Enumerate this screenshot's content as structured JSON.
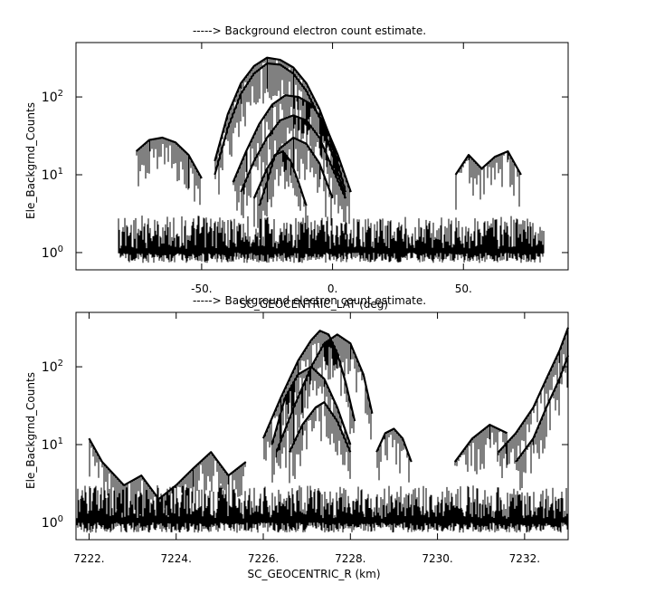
{
  "chart_data": [
    {
      "type": "line",
      "title": "-----> Background electron count estimate.",
      "xlabel": "SC_GEOCENTRIC_LAT (deg)",
      "ylabel": "Ele_Backgrnd_Counts",
      "xlim": [
        -98,
        90
      ],
      "ylim": [
        0.6,
        500
      ],
      "yscale": "log",
      "xticks": [
        {
          "value": -50,
          "label": "-50."
        },
        {
          "value": 0,
          "label": "0."
        },
        {
          "value": 50,
          "label": "50."
        }
      ],
      "yticks": [
        {
          "value": 1,
          "base": "10",
          "exp": "0"
        },
        {
          "value": 10,
          "base": "10",
          "exp": "1"
        },
        {
          "value": 100,
          "base": "10",
          "exp": "2"
        }
      ],
      "grid": false,
      "series": [
        {
          "x": [
            -75,
            -70,
            -65,
            -60,
            -55,
            -50
          ],
          "y": [
            20,
            28,
            30,
            26,
            18,
            9
          ]
        },
        {
          "x": [
            -45,
            -40,
            -35,
            -30,
            -25,
            -20,
            -15,
            -10,
            -5,
            0,
            5
          ],
          "y": [
            15,
            60,
            150,
            250,
            320,
            300,
            240,
            150,
            70,
            25,
            6
          ]
        },
        {
          "x": [
            -45,
            -40,
            -35,
            -30,
            -25,
            -20,
            -15,
            -10,
            -5,
            0,
            5
          ],
          "y": [
            10,
            40,
            110,
            200,
            270,
            260,
            200,
            120,
            55,
            18,
            5
          ]
        },
        {
          "x": [
            -38,
            -33,
            -28,
            -23,
            -18,
            -13,
            -8,
            -3,
            2,
            7
          ],
          "y": [
            8,
            20,
            45,
            80,
            105,
            100,
            80,
            45,
            18,
            6
          ]
        },
        {
          "x": [
            -35,
            -30,
            -25,
            -20,
            -15,
            -10,
            -5,
            0,
            5
          ],
          "y": [
            6,
            15,
            30,
            50,
            58,
            50,
            30,
            12,
            5
          ]
        },
        {
          "x": [
            -30,
            -25,
            -20,
            -15,
            -10,
            -5,
            0
          ],
          "y": [
            5,
            12,
            22,
            30,
            25,
            14,
            5
          ]
        },
        {
          "x": [
            -28,
            -25,
            -22,
            -19,
            -16,
            -13,
            -10
          ],
          "y": [
            4,
            8,
            18,
            20,
            15,
            8,
            4
          ]
        },
        {
          "x": [
            47,
            52,
            57,
            62,
            67,
            72
          ],
          "y": [
            10,
            18,
            12,
            17,
            20,
            10
          ]
        }
      ]
    },
    {
      "type": "line",
      "title": "-----> Background electron count estimate.",
      "xlabel": "SC_GEOCENTRIC_R (km)",
      "ylabel": "Ele_Backgrnd_Counts",
      "xlim": [
        7221.7,
        7233.0
      ],
      "ylim": [
        0.6,
        500
      ],
      "yscale": "log",
      "xticks": [
        {
          "value": 7222,
          "label": "7222."
        },
        {
          "value": 7224,
          "label": "7224."
        },
        {
          "value": 7226,
          "label": "7226."
        },
        {
          "value": 7228,
          "label": "7228."
        },
        {
          "value": 7230,
          "label": "7230."
        },
        {
          "value": 7232,
          "label": "7232."
        }
      ],
      "yticks": [
        {
          "value": 1,
          "base": "10",
          "exp": "0"
        },
        {
          "value": 10,
          "base": "10",
          "exp": "1"
        },
        {
          "value": 100,
          "base": "10",
          "exp": "2"
        }
      ],
      "grid": false,
      "series": [
        {
          "x": [
            7226.0,
            7226.4,
            7226.8,
            7227.1,
            7227.3,
            7227.5,
            7227.7,
            7227.9,
            7228.1
          ],
          "y": [
            12,
            40,
            120,
            220,
            290,
            260,
            150,
            60,
            20
          ]
        },
        {
          "x": [
            7226.3,
            7226.7,
            7227.1,
            7227.4,
            7227.7,
            7228.0,
            7228.3,
            7228.5
          ],
          "y": [
            8,
            30,
            100,
            200,
            260,
            200,
            80,
            25
          ]
        },
        {
          "x": [
            7226.2,
            7226.5,
            7226.8,
            7227.1,
            7227.4,
            7227.7,
            7228.0
          ],
          "y": [
            10,
            40,
            80,
            100,
            70,
            30,
            10
          ]
        },
        {
          "x": [
            7226.6,
            7226.9,
            7227.2,
            7227.4,
            7227.7,
            7228.0
          ],
          "y": [
            8,
            18,
            30,
            35,
            20,
            8
          ]
        },
        {
          "x": [
            7228.6,
            7228.8,
            7229.0,
            7229.2,
            7229.4
          ],
          "y": [
            8,
            14,
            16,
            12,
            6
          ]
        },
        {
          "x": [
            7230.4,
            7230.8,
            7231.2,
            7231.6
          ],
          "y": [
            6,
            12,
            18,
            14
          ]
        },
        {
          "x": [
            7231.4,
            7231.8,
            7232.2,
            7232.5,
            7232.8,
            7233.0
          ],
          "y": [
            8,
            14,
            30,
            70,
            160,
            320
          ]
        },
        {
          "x": [
            7231.8,
            7232.2,
            7232.5,
            7232.8,
            7233.0
          ],
          "y": [
            6,
            12,
            30,
            70,
            140
          ]
        },
        {
          "x": [
            7222.0,
            7222.3,
            7222.8,
            7223.2,
            7223.6,
            7224.0,
            7224.4,
            7224.8,
            7225.2,
            7225.6
          ],
          "y": [
            12,
            6,
            3,
            4,
            2,
            3,
            5,
            8,
            4,
            6
          ]
        }
      ]
    }
  ]
}
